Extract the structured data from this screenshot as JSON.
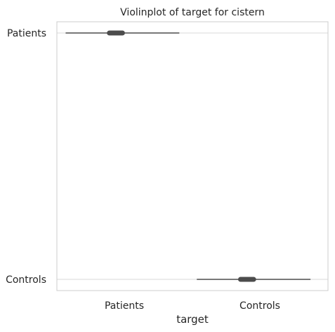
{
  "chart_data": {
    "type": "violin",
    "title": "Violinplot of target for cistern",
    "xlabel": "target",
    "ylabel": "",
    "x_categories": [
      "Patients",
      "Controls"
    ],
    "y_categories": [
      "Patients",
      "Controls"
    ],
    "grid": true,
    "series": [
      {
        "y_category": "Patients",
        "whisker": [
          -0.4,
          0.9
        ],
        "box": [
          0.1,
          0.25
        ]
      },
      {
        "y_category": "Controls",
        "whisker": [
          1.1,
          2.4
        ],
        "box": [
          1.6,
          1.75
        ]
      }
    ],
    "xlim": [
      -0.5,
      2.6
    ],
    "colors": {
      "line": "#4c4c4c",
      "grid": "#d9d9d9",
      "spine": "#cccccc"
    }
  }
}
